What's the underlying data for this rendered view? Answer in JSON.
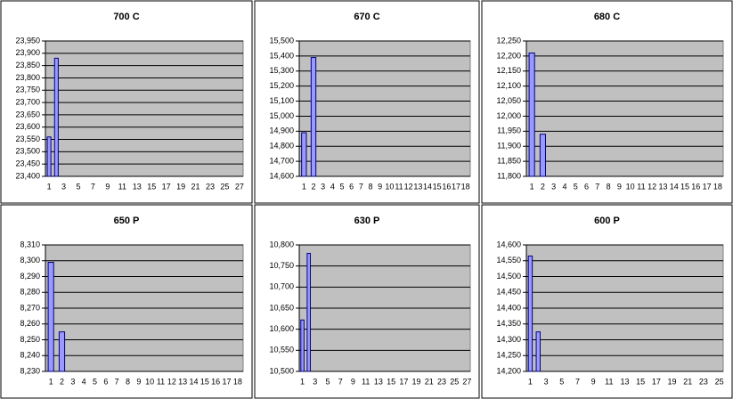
{
  "chart_data": [
    {
      "type": "bar",
      "title": "700 C",
      "color": "#9999ff",
      "grid": true,
      "categories": [
        1,
        null,
        3,
        null,
        5,
        null,
        7,
        null,
        9,
        null,
        11,
        null,
        13,
        null,
        15,
        null,
        17,
        null,
        19,
        null,
        21,
        null,
        23,
        null,
        25,
        null,
        27
      ],
      "values": [
        23560,
        23880,
        null,
        null,
        null,
        null,
        null,
        null,
        null,
        null,
        null,
        null,
        null,
        null,
        null,
        null,
        null,
        null,
        null,
        null,
        null,
        null,
        null,
        null,
        null,
        null,
        null
      ],
      "ylim": [
        23400,
        23950
      ],
      "yticks": [
        {
          "value": 23400,
          "label": "23,400"
        },
        {
          "value": 23450,
          "label": "23,450"
        },
        {
          "value": 23500,
          "label": "23,500"
        },
        {
          "value": 23550,
          "label": "23,550"
        },
        {
          "value": 23600,
          "label": "23,600"
        },
        {
          "value": 23650,
          "label": "23,650"
        },
        {
          "value": 23700,
          "label": "23,700"
        },
        {
          "value": 23750,
          "label": "23,750"
        },
        {
          "value": 23800,
          "label": "23,800"
        },
        {
          "value": 23850,
          "label": "23,850"
        },
        {
          "value": 23900,
          "label": "23,900"
        },
        {
          "value": 23950,
          "label": "23,950"
        }
      ]
    },
    {
      "type": "bar",
      "title": "670 C",
      "color": "#9999ff",
      "grid": true,
      "categories": [
        1,
        2,
        3,
        4,
        5,
        6,
        7,
        8,
        9,
        10,
        11,
        12,
        13,
        14,
        15,
        16,
        17,
        18
      ],
      "values": [
        14890,
        15390,
        null,
        null,
        null,
        null,
        null,
        null,
        null,
        null,
        null,
        null,
        null,
        null,
        null,
        null,
        null,
        null
      ],
      "ylim": [
        14600,
        15500
      ],
      "yticks": [
        {
          "value": 14600,
          "label": "14,600"
        },
        {
          "value": 14700,
          "label": "14,700"
        },
        {
          "value": 14800,
          "label": "14,800"
        },
        {
          "value": 14900,
          "label": "14,900"
        },
        {
          "value": 15000,
          "label": "15,000"
        },
        {
          "value": 15100,
          "label": "15,100"
        },
        {
          "value": 15200,
          "label": "15,200"
        },
        {
          "value": 15300,
          "label": "15,300"
        },
        {
          "value": 15400,
          "label": "15,400"
        },
        {
          "value": 15500,
          "label": "15,500"
        }
      ]
    },
    {
      "type": "bar",
      "title": "680 C",
      "color": "#9999ff",
      "grid": true,
      "categories": [
        1,
        2,
        3,
        4,
        5,
        6,
        7,
        8,
        9,
        10,
        11,
        12,
        13,
        14,
        15,
        16,
        17,
        18
      ],
      "values": [
        12210,
        11940,
        null,
        null,
        null,
        null,
        null,
        null,
        null,
        null,
        null,
        null,
        null,
        null,
        null,
        null,
        null,
        null
      ],
      "ylim": [
        11800,
        12250
      ],
      "yticks": [
        {
          "value": 11800,
          "label": "11,800"
        },
        {
          "value": 11850,
          "label": "11,850"
        },
        {
          "value": 11900,
          "label": "11,900"
        },
        {
          "value": 11950,
          "label": "11,950"
        },
        {
          "value": 12000,
          "label": "12,000"
        },
        {
          "value": 12050,
          "label": "12,050"
        },
        {
          "value": 12100,
          "label": "12,100"
        },
        {
          "value": 12150,
          "label": "12,150"
        },
        {
          "value": 12200,
          "label": "12,200"
        },
        {
          "value": 12250,
          "label": "12,250"
        }
      ]
    },
    {
      "type": "bar",
      "title": "650 P",
      "color": "#9999ff",
      "grid": true,
      "categories": [
        1,
        2,
        3,
        4,
        5,
        6,
        7,
        8,
        9,
        10,
        11,
        12,
        13,
        14,
        15,
        16,
        17,
        18
      ],
      "values": [
        8299,
        8255,
        null,
        null,
        null,
        null,
        null,
        null,
        null,
        null,
        null,
        null,
        null,
        null,
        null,
        null,
        null,
        null
      ],
      "ylim": [
        8230,
        8310
      ],
      "yticks": [
        {
          "value": 8230,
          "label": "8,230"
        },
        {
          "value": 8240,
          "label": "8,240"
        },
        {
          "value": 8250,
          "label": "8,250"
        },
        {
          "value": 8260,
          "label": "8,260"
        },
        {
          "value": 8270,
          "label": "8,270"
        },
        {
          "value": 8280,
          "label": "8,280"
        },
        {
          "value": 8290,
          "label": "8,290"
        },
        {
          "value": 8300,
          "label": "8,300"
        },
        {
          "value": 8310,
          "label": "8,310"
        }
      ]
    },
    {
      "type": "bar",
      "title": "630 P",
      "color": "#9999ff",
      "grid": true,
      "categories": [
        1,
        null,
        3,
        null,
        5,
        null,
        7,
        null,
        9,
        null,
        11,
        null,
        13,
        null,
        15,
        null,
        17,
        null,
        19,
        null,
        21,
        null,
        23,
        null,
        25,
        null,
        27
      ],
      "values": [
        10622,
        10780,
        null,
        null,
        null,
        null,
        null,
        null,
        null,
        null,
        null,
        null,
        null,
        null,
        null,
        null,
        null,
        null,
        null,
        null,
        null,
        null,
        null,
        null,
        null,
        null,
        null
      ],
      "ylim": [
        10500,
        10800
      ],
      "yticks": [
        {
          "value": 10500,
          "label": "10,500"
        },
        {
          "value": 10550,
          "label": "10,550"
        },
        {
          "value": 10600,
          "label": "10,600"
        },
        {
          "value": 10650,
          "label": "10,650"
        },
        {
          "value": 10700,
          "label": "10,700"
        },
        {
          "value": 10750,
          "label": "10,750"
        },
        {
          "value": 10800,
          "label": "10,800"
        }
      ]
    },
    {
      "type": "bar",
      "title": "600 P",
      "color": "#9999ff",
      "grid": true,
      "categories": [
        1,
        null,
        3,
        null,
        5,
        null,
        7,
        null,
        9,
        null,
        11,
        null,
        13,
        null,
        15,
        null,
        17,
        null,
        19,
        null,
        21,
        null,
        23,
        null,
        25
      ],
      "values": [
        14565,
        14325,
        null,
        null,
        null,
        null,
        null,
        null,
        null,
        null,
        null,
        null,
        null,
        null,
        null,
        null,
        null,
        null,
        null,
        null,
        null,
        null,
        null,
        null,
        null
      ],
      "ylim": [
        14200,
        14600
      ],
      "yticks": [
        {
          "value": 14200,
          "label": "14,200"
        },
        {
          "value": 14250,
          "label": "14,250"
        },
        {
          "value": 14300,
          "label": "14,300"
        },
        {
          "value": 14350,
          "label": "14,350"
        },
        {
          "value": 14400,
          "label": "14,400"
        },
        {
          "value": 14450,
          "label": "14,450"
        },
        {
          "value": 14500,
          "label": "14,500"
        },
        {
          "value": 14550,
          "label": "14,550"
        },
        {
          "value": 14600,
          "label": "14,600"
        }
      ]
    }
  ]
}
